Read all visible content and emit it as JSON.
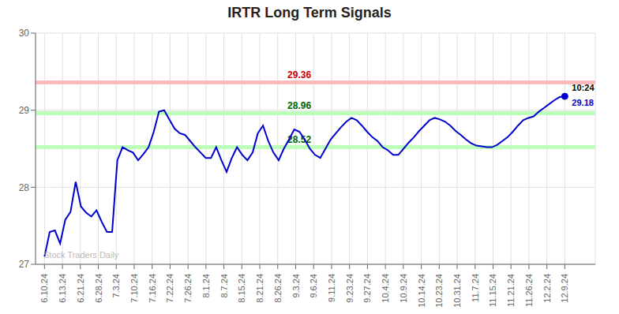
{
  "chart_data": {
    "type": "line",
    "title": "IRTR Long Term Signals",
    "x": [
      0,
      0.29,
      0.58,
      0.87,
      1.16,
      1.45,
      1.74,
      2.03,
      2.32,
      2.61,
      2.9,
      3.19,
      3.48,
      3.77,
      4.06,
      4.35,
      4.64,
      4.93,
      5.22,
      5.51,
      5.8,
      6.09,
      6.38,
      6.67,
      6.96,
      7.25,
      7.54,
      7.83,
      8.12,
      8.41,
      8.7,
      8.99,
      9.28,
      9.57,
      9.86,
      10.15,
      10.44,
      10.73,
      11.02,
      11.31,
      11.6,
      11.89,
      12.18,
      12.47,
      12.76,
      13.05,
      13.34,
      13.63,
      13.92,
      14.21,
      14.5,
      14.79,
      15.08,
      15.37,
      15.66,
      15.95,
      16.24,
      16.53,
      16.82,
      17.11,
      17.4,
      17.69,
      17.98,
      18.27,
      18.56,
      18.85,
      19.14,
      19.43,
      19.72,
      20.01,
      20.3,
      20.59,
      20.88,
      21.17,
      21.46,
      21.75,
      22.04,
      22.33,
      22.62,
      22.91,
      23.2,
      23.49,
      23.78,
      24.07,
      24.36,
      24.65,
      24.94,
      25.23,
      25.52,
      25.81,
      26.1,
      26.39,
      26.68,
      26.97,
      27.26,
      27.55,
      27.84,
      28.13,
      28.42,
      28.71,
      29
    ],
    "values": [
      27.1,
      27.42,
      27.44,
      27.27,
      27.58,
      27.68,
      28.07,
      27.75,
      27.67,
      27.62,
      27.7,
      27.55,
      27.42,
      27.42,
      28.35,
      28.52,
      28.48,
      28.45,
      28.35,
      28.43,
      28.52,
      28.72,
      28.98,
      29.0,
      28.88,
      28.76,
      28.7,
      28.68,
      28.6,
      28.52,
      28.45,
      28.38,
      28.38,
      28.52,
      28.35,
      28.2,
      28.38,
      28.52,
      28.42,
      28.35,
      28.45,
      28.7,
      28.8,
      28.6,
      28.45,
      28.35,
      28.5,
      28.62,
      28.75,
      28.72,
      28.62,
      28.5,
      28.42,
      28.38,
      28.5,
      28.62,
      28.7,
      28.78,
      28.85,
      28.9,
      28.87,
      28.8,
      28.72,
      28.65,
      28.6,
      28.52,
      28.48,
      28.42,
      28.42,
      28.5,
      28.58,
      28.65,
      28.73,
      28.8,
      28.87,
      28.9,
      28.88,
      28.85,
      28.8,
      28.73,
      28.68,
      28.62,
      28.57,
      28.54,
      28.53,
      28.52,
      28.52,
      28.55,
      28.6,
      28.65,
      28.72,
      28.8,
      28.87,
      28.9,
      28.92,
      28.98,
      29.03,
      29.08,
      29.13,
      29.17,
      29.18
    ],
    "color": "#0000cc",
    "xlim": [
      -0.5,
      30.7
    ],
    "xticks": [
      {
        "value": 0,
        "label": "6.10.24"
      },
      {
        "value": 1,
        "label": "6.13.24"
      },
      {
        "value": 2,
        "label": "6.21.24"
      },
      {
        "value": 3,
        "label": "6.28.24"
      },
      {
        "value": 4,
        "label": "7.3.24"
      },
      {
        "value": 5,
        "label": "7.10.24"
      },
      {
        "value": 6,
        "label": "7.16.24"
      },
      {
        "value": 7,
        "label": "7.22.24"
      },
      {
        "value": 8,
        "label": "7.26.24"
      },
      {
        "value": 9,
        "label": "8.1.24"
      },
      {
        "value": 10,
        "label": "8.7.24"
      },
      {
        "value": 11,
        "label": "8.15.24"
      },
      {
        "value": 12,
        "label": "8.21.24"
      },
      {
        "value": 13,
        "label": "8.26.24"
      },
      {
        "value": 14,
        "label": "9.3.24"
      },
      {
        "value": 15,
        "label": "9.6.24"
      },
      {
        "value": 16,
        "label": "9.11.24"
      },
      {
        "value": 17,
        "label": "9.23.24"
      },
      {
        "value": 18,
        "label": "9.27.24"
      },
      {
        "value": 19,
        "label": "10.4.24"
      },
      {
        "value": 20,
        "label": "10.9.24"
      },
      {
        "value": 21,
        "label": "10.14.24"
      },
      {
        "value": 22,
        "label": "10.23.24"
      },
      {
        "value": 23,
        "label": "10.31.24"
      },
      {
        "value": 24,
        "label": "11.7.24"
      },
      {
        "value": 25,
        "label": "11.15.24"
      },
      {
        "value": 26,
        "label": "11.21.24"
      },
      {
        "value": 27,
        "label": "11.26.24"
      },
      {
        "value": 28,
        "label": "12.2.24"
      },
      {
        "value": 29,
        "label": "12.9.24"
      }
    ],
    "ylim": [
      27.0,
      30.0
    ],
    "yticks": [
      27,
      28,
      29,
      30
    ],
    "grid": true,
    "hlines": [
      {
        "value": 29.36,
        "color": "#ffbbbb",
        "label": "29.36",
        "label_color": "#cc0000"
      },
      {
        "value": 28.96,
        "color": "#bbffbb",
        "label": "28.96",
        "label_color": "#006600"
      },
      {
        "value": 28.52,
        "color": "#bbffbb",
        "label": "28.52",
        "label_color": "#006600"
      }
    ],
    "annotations": [
      {
        "text": "10:24",
        "color": "#000000"
      },
      {
        "text": "29.18",
        "color": "#0000cc"
      },
      {
        "text": "Stock Traders Daily",
        "color": "#aaaaaa"
      }
    ]
  }
}
